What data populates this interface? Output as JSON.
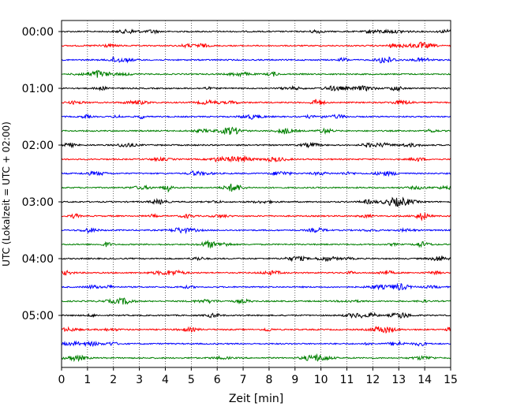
{
  "chart_data": {
    "type": "line",
    "title": "",
    "xlabel": "Zeit  [min]",
    "ylabel": "UTC (Lokalzeit = UTC + 02:00)",
    "xlim": [
      0,
      15
    ],
    "x_ticks": [
      "0",
      "1",
      "2",
      "3",
      "4",
      "5",
      "6",
      "7",
      "8",
      "9",
      "10",
      "11",
      "12",
      "13",
      "14",
      "15"
    ],
    "y_ticks": [
      "00:00",
      "01:00",
      "02:00",
      "03:00",
      "04:00",
      "05:00"
    ],
    "grid": "vertical dotted lines at each minute",
    "trace_interval_minutes": 15,
    "trace_count": 24,
    "trace_colors": [
      "#000000",
      "#ff0000",
      "#0000ff",
      "#008000"
    ],
    "series": [
      {
        "start": "00:00",
        "color": "#000000"
      },
      {
        "start": "00:15",
        "color": "#ff0000"
      },
      {
        "start": "00:30",
        "color": "#0000ff"
      },
      {
        "start": "00:45",
        "color": "#008000"
      },
      {
        "start": "01:00",
        "color": "#000000"
      },
      {
        "start": "01:15",
        "color": "#ff0000"
      },
      {
        "start": "01:30",
        "color": "#0000ff"
      },
      {
        "start": "01:45",
        "color": "#008000"
      },
      {
        "start": "02:00",
        "color": "#000000"
      },
      {
        "start": "02:15",
        "color": "#ff0000"
      },
      {
        "start": "02:30",
        "color": "#0000ff"
      },
      {
        "start": "02:45",
        "color": "#008000"
      },
      {
        "start": "03:00",
        "color": "#000000"
      },
      {
        "start": "03:15",
        "color": "#ff0000"
      },
      {
        "start": "03:30",
        "color": "#0000ff"
      },
      {
        "start": "03:45",
        "color": "#008000"
      },
      {
        "start": "04:00",
        "color": "#000000"
      },
      {
        "start": "04:15",
        "color": "#ff0000"
      },
      {
        "start": "04:30",
        "color": "#0000ff"
      },
      {
        "start": "04:45",
        "color": "#008000"
      },
      {
        "start": "05:00",
        "color": "#000000"
      },
      {
        "start": "05:15",
        "color": "#ff0000"
      },
      {
        "start": "05:30",
        "color": "#0000ff"
      },
      {
        "start": "05:45",
        "color": "#008000"
      }
    ]
  }
}
